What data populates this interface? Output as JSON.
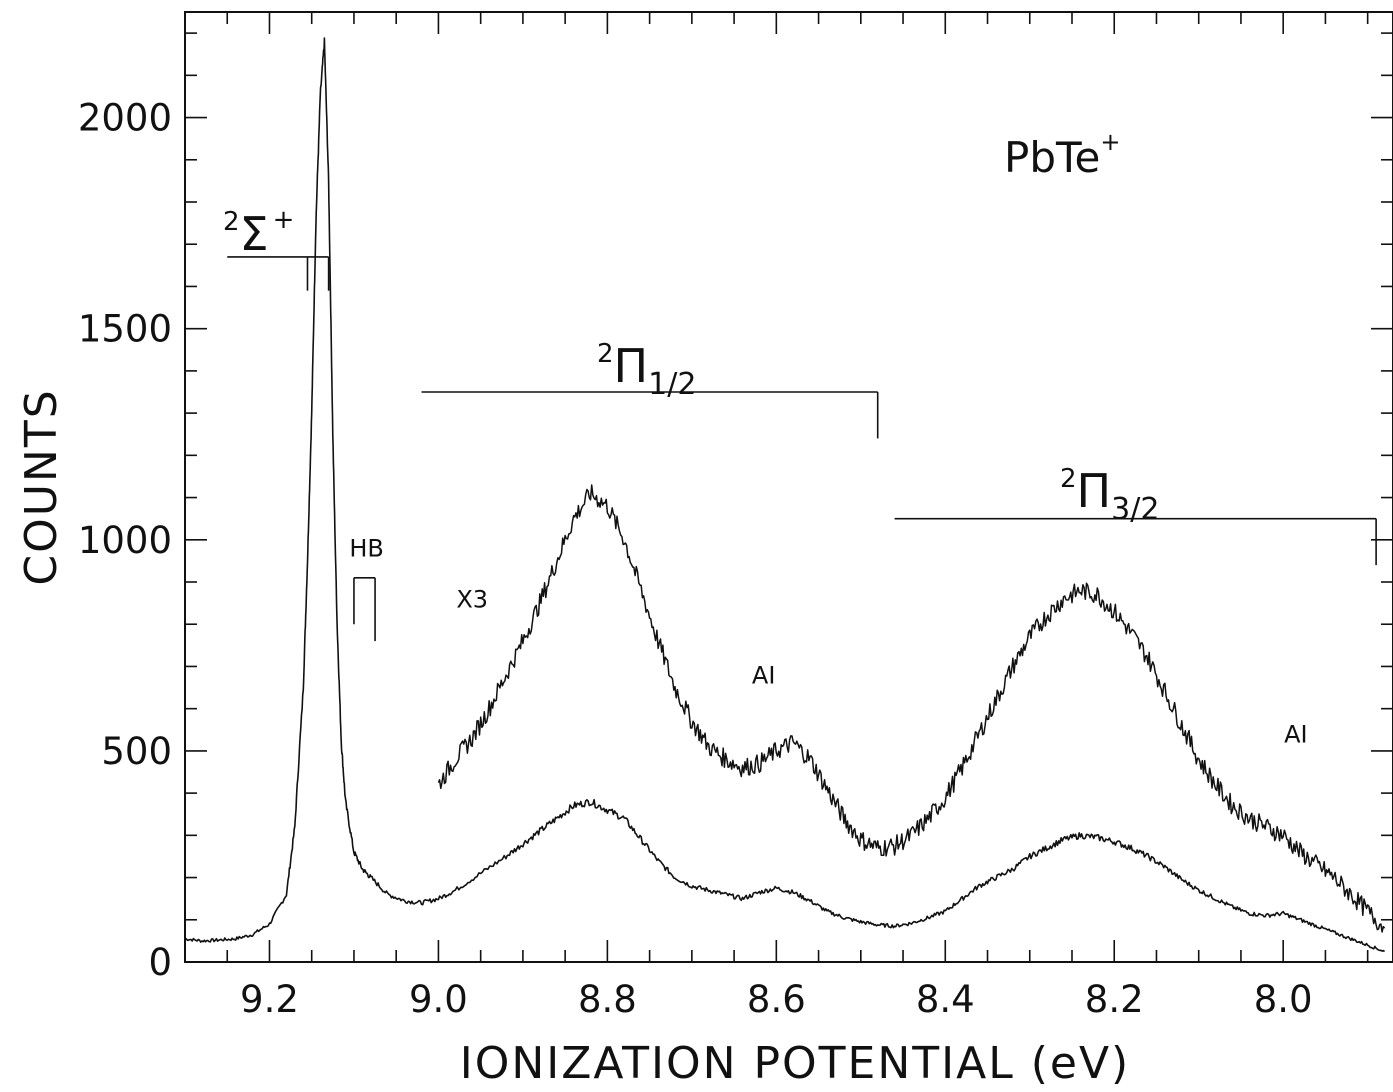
{
  "chart_data": {
    "type": "line",
    "title": "",
    "xlabel": "IONIZATION POTENTIAL (eV)",
    "ylabel": "COUNTS",
    "xlim": [
      9.3,
      7.87
    ],
    "ylim": [
      0,
      2250
    ],
    "x_reversed": true,
    "grid": false,
    "x_ticks": [
      9.2,
      9.0,
      8.8,
      8.6,
      8.4,
      8.2,
      8.0
    ],
    "x_tick_labels": [
      "9.2",
      "9.0",
      "8.8",
      "8.6",
      "8.4",
      "8.2",
      "8.0"
    ],
    "y_ticks": [
      0,
      500,
      1000,
      1500,
      2000
    ],
    "y_tick_labels": [
      "0",
      "500",
      "1000",
      "1500",
      "2000"
    ],
    "series": [
      {
        "name": "",
        "x": [
          9.3,
          9.28,
          9.26,
          9.24,
          9.22,
          9.2,
          9.18,
          9.17,
          9.16,
          9.155,
          9.15,
          9.145,
          9.14,
          9.135,
          9.13,
          9.125,
          9.12,
          9.115,
          9.11,
          9.1,
          9.09,
          9.08,
          9.06,
          9.04,
          9.02,
          9.0,
          8.98,
          8.95,
          8.92,
          8.9,
          8.88,
          8.86,
          8.84,
          8.82,
          8.8,
          8.78,
          8.76,
          8.74,
          8.72,
          8.7,
          8.68,
          8.66,
          8.64,
          8.62,
          8.6,
          8.58,
          8.56,
          8.54,
          8.52,
          8.5,
          8.48,
          8.46,
          8.44,
          8.42,
          8.4,
          8.38,
          8.36,
          8.34,
          8.32,
          8.3,
          8.28,
          8.26,
          8.24,
          8.22,
          8.2,
          8.18,
          8.16,
          8.14,
          8.12,
          8.1,
          8.08,
          8.06,
          8.04,
          8.02,
          8.0,
          7.98,
          7.96,
          7.94,
          7.92,
          7.9,
          7.88
        ],
        "y": [
          55,
          50,
          52,
          55,
          65,
          90,
          160,
          320,
          650,
          950,
          1300,
          1750,
          2050,
          2180,
          1850,
          1250,
          800,
          520,
          380,
          260,
          220,
          200,
          160,
          145,
          140,
          150,
          170,
          210,
          250,
          280,
          310,
          340,
          370,
          380,
          360,
          340,
          290,
          240,
          200,
          180,
          170,
          160,
          150,
          165,
          175,
          165,
          145,
          120,
          105,
          95,
          88,
          85,
          92,
          105,
          120,
          150,
          180,
          200,
          220,
          250,
          270,
          290,
          300,
          295,
          285,
          270,
          250,
          225,
          195,
          170,
          150,
          130,
          115,
          110,
          115,
          100,
          85,
          70,
          55,
          40,
          25
        ]
      },
      {
        "name": "X3",
        "x": [
          9.0,
          8.98,
          8.96,
          8.94,
          8.92,
          8.9,
          8.88,
          8.86,
          8.84,
          8.82,
          8.8,
          8.78,
          8.76,
          8.74,
          8.72,
          8.7,
          8.68,
          8.66,
          8.64,
          8.62,
          8.6,
          8.58,
          8.56,
          8.54,
          8.52,
          8.5,
          8.48,
          8.46,
          8.44,
          8.42,
          8.4,
          8.38,
          8.36,
          8.34,
          8.32,
          8.3,
          8.28,
          8.26,
          8.24,
          8.22,
          8.2,
          8.18,
          8.16,
          8.14,
          8.12,
          8.1,
          8.08,
          8.06,
          8.04,
          8.02,
          8.0,
          7.98,
          7.96,
          7.94,
          7.92,
          7.9,
          7.88
        ],
        "y": [
          420,
          480,
          530,
          600,
          680,
          760,
          850,
          950,
          1050,
          1110,
          1080,
          1000,
          880,
          760,
          650,
          570,
          510,
          480,
          460,
          470,
          500,
          520,
          480,
          410,
          340,
          290,
          270,
          275,
          300,
          340,
          390,
          460,
          540,
          620,
          700,
          770,
          820,
          860,
          880,
          870,
          830,
          780,
          720,
          640,
          560,
          480,
          420,
          370,
          340,
          320,
          300,
          260,
          230,
          200,
          160,
          120,
          80
        ]
      }
    ],
    "annotations": [
      {
        "text": "X3",
        "x": 8.96,
        "y": 840
      },
      {
        "text": "AI",
        "x": 8.615,
        "y": 660
      },
      {
        "text": "AI",
        "x": 7.985,
        "y": 520
      },
      {
        "text": "HB",
        "x": 9.085,
        "y": 960
      }
    ],
    "state_labels": [
      {
        "base": "Σ",
        "sup_left": "2",
        "sup_right": "+",
        "sub": ""
      },
      {
        "base": "Π",
        "sup_left": "2",
        "sup_right": "",
        "sub": "1/2"
      },
      {
        "base": "Π",
        "sup_left": "2",
        "sup_right": "",
        "sub": "3/2"
      }
    ],
    "molecule_label": {
      "base": "PbTe",
      "sup": "+"
    },
    "markers": [
      {
        "name": "sigma",
        "x1": 9.25,
        "x2": 9.13,
        "y": 1670,
        "tick_x": [
          9.155,
          9.13
        ],
        "tick_bottom": 1590
      },
      {
        "name": "pi12",
        "x1": 9.02,
        "x2": 8.48,
        "y": 1350,
        "tick_x": [
          8.48
        ],
        "tick_bottom": 1240
      },
      {
        "name": "pi32",
        "x1": 8.46,
        "x2": 7.89,
        "y": 1050,
        "tick_x": [
          7.89
        ],
        "tick_bottom": 940
      },
      {
        "name": "hb",
        "x1": 9.1,
        "x2": 9.075,
        "y": 910,
        "tick_x": [
          9.1,
          9.075
        ],
        "tick_bottom": [
          800,
          760
        ]
      }
    ]
  }
}
